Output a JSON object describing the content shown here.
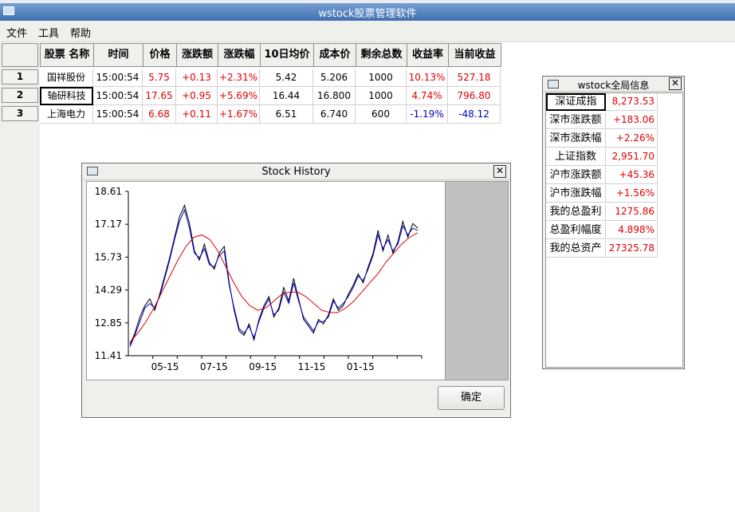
{
  "window": {
    "title": "wstock股票管理软件"
  },
  "menu": [
    "文件",
    "工具",
    "帮助"
  ],
  "table": {
    "headers": [
      "股票 名称",
      "时间",
      "价格",
      "涨跌额",
      "涨跌幅",
      "10日均价",
      "成本价",
      "剩余总数",
      "收益率",
      "当前收益"
    ],
    "rows": [
      {
        "num": "1",
        "cells": [
          "国祥股份",
          "15:00:54",
          "5.75",
          "+0.13",
          "+2.31%",
          "5.42",
          "5.206",
          "1000",
          "10.13%",
          "527.18"
        ]
      },
      {
        "num": "2",
        "cells": [
          "轴研科技",
          "15:00:54",
          "17.65",
          "+0.95",
          "+5.69%",
          "16.44",
          "16.800",
          "1000",
          "4.74%",
          "796.80"
        ]
      },
      {
        "num": "3",
        "cells": [
          "上海电力",
          "15:00:54",
          "6.68",
          "+0.11",
          "+1.67%",
          "6.51",
          "6.740",
          "600",
          "-1.19%",
          "-48.12"
        ]
      }
    ]
  },
  "history_dialog": {
    "title": "Stock History",
    "ok_label": "确定"
  },
  "chart_data": {
    "type": "line",
    "title": "",
    "xlabel": "",
    "ylabel": "",
    "ylim": [
      11.41,
      18.61
    ],
    "yticks": [
      "18.61",
      "17.17",
      "15.73",
      "14.29",
      "12.85",
      "11.41"
    ],
    "xticks": [
      "05-15",
      "07-15",
      "09-15",
      "11-15",
      "01-15"
    ],
    "grid": false,
    "series": [
      {
        "color": "#000000",
        "values": [
          11.9,
          12.4,
          13.1,
          13.6,
          13.9,
          13.4,
          14.1,
          14.9,
          15.7,
          16.6,
          17.5,
          18.0,
          17.2,
          16.0,
          15.6,
          16.3,
          15.5,
          15.2,
          15.9,
          16.2,
          14.6,
          13.4,
          12.5,
          12.3,
          12.8,
          12.1,
          13.0,
          13.6,
          14.0,
          13.1,
          13.5,
          14.4,
          13.8,
          14.8,
          13.9,
          13.0,
          12.7,
          12.4,
          13.0,
          12.8,
          13.2,
          13.9,
          13.4,
          13.6,
          14.1,
          14.5,
          15.0,
          14.6,
          15.3,
          15.9,
          16.9,
          16.0,
          16.7,
          15.9,
          16.4,
          17.3,
          16.6,
          17.2,
          17.0
        ]
      },
      {
        "color": "#0000cc",
        "values": [
          11.8,
          12.3,
          12.9,
          13.5,
          13.7,
          13.5,
          14.0,
          14.8,
          15.6,
          16.5,
          17.3,
          17.8,
          17.0,
          15.9,
          15.7,
          16.1,
          15.4,
          15.3,
          15.8,
          16.0,
          14.5,
          13.5,
          12.6,
          12.4,
          12.7,
          12.2,
          12.9,
          13.5,
          13.9,
          13.2,
          13.4,
          14.2,
          13.7,
          14.6,
          13.8,
          13.1,
          12.8,
          12.5,
          12.9,
          12.9,
          13.1,
          13.8,
          13.5,
          13.7,
          14.0,
          14.4,
          14.9,
          14.7,
          15.2,
          15.8,
          16.7,
          16.1,
          16.5,
          16.0,
          16.3,
          17.1,
          16.7,
          17.0,
          16.9
        ]
      },
      {
        "color": "#e00000",
        "values": [
          12.0,
          12.4,
          12.9,
          13.5,
          14.2,
          14.9,
          15.6,
          16.2,
          16.6,
          16.7,
          16.5,
          16.0,
          15.3,
          14.6,
          14.0,
          13.6,
          13.4,
          13.5,
          13.8,
          14.1,
          14.2,
          14.2,
          14.0,
          13.7,
          13.4,
          13.3,
          13.3,
          13.5,
          13.8,
          14.2,
          14.6,
          15.0,
          15.5,
          15.9,
          16.3,
          16.6,
          16.8
        ]
      }
    ]
  },
  "info_panel": {
    "title": "wstock全局信息",
    "rows": [
      {
        "label": "深证成指",
        "value": "8,273.53"
      },
      {
        "label": "深市涨跌额",
        "value": "+183.06"
      },
      {
        "label": "深市涨跌幅",
        "value": "+2.26%"
      },
      {
        "label": "上证指数",
        "value": "2,951.70"
      },
      {
        "label": "沪市涨跌额",
        "value": "+45.36"
      },
      {
        "label": "沪市涨跌幅",
        "value": "+1.56%"
      },
      {
        "label": "我的总盈利",
        "value": "1275.86"
      },
      {
        "label": "总盈利幅度",
        "value": "4.898%"
      },
      {
        "label": "我的总资产",
        "value": "27325.78"
      }
    ]
  }
}
